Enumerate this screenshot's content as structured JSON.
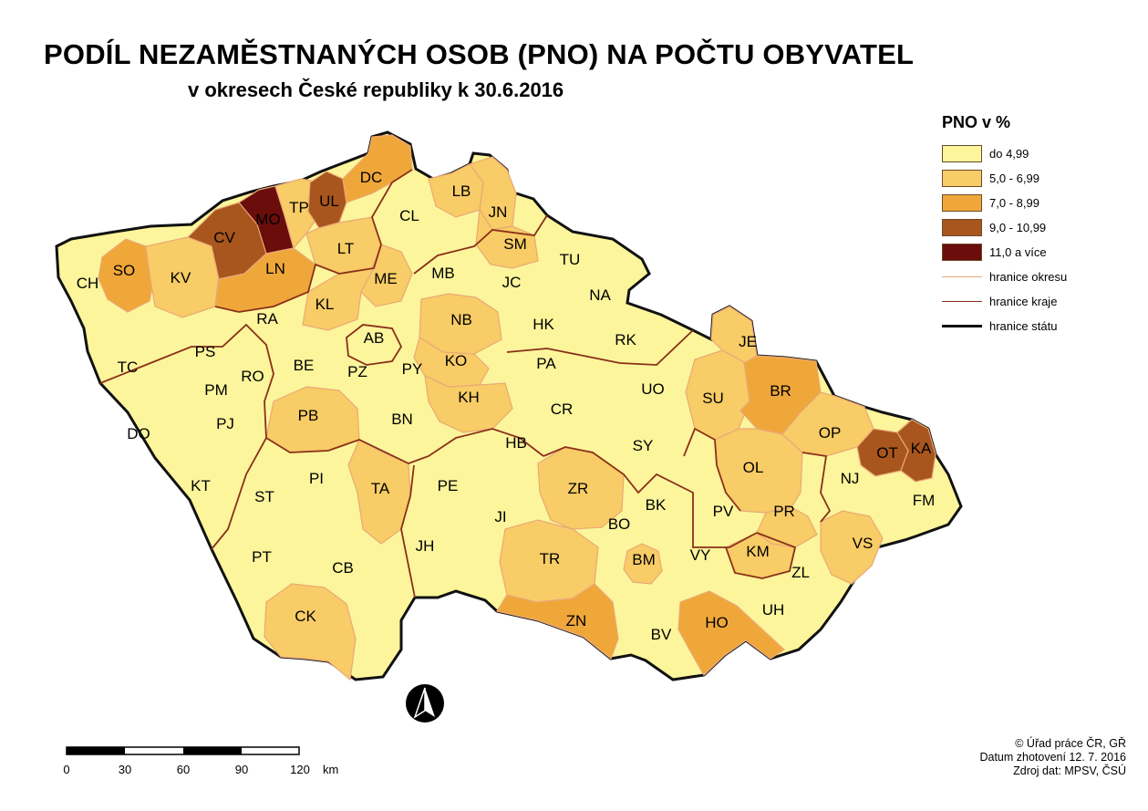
{
  "title": "PODÍL NEZAMĚSTNANÝCH OSOB (PNO) NA POČTU OBYVATEL",
  "subtitle": "v okresech České republiky k 30.6.2016",
  "legend": {
    "title": "PNO v %",
    "classes": [
      {
        "label": "do 4,99",
        "color": "#fcf59b"
      },
      {
        "label": "5,0 - 6,99",
        "color": "#f8cc66"
      },
      {
        "label": "7,0 - 8,99",
        "color": "#f0a73a"
      },
      {
        "label": "9,0 - 10,99",
        "color": "#a8561e"
      },
      {
        "label": "11,0 a více",
        "color": "#6a0d0b"
      }
    ],
    "lines": [
      {
        "label": "hranice okresu",
        "color": "#e9a978"
      },
      {
        "label": "hranice kraje",
        "color": "#8a2f1a"
      },
      {
        "label": "hranice státu",
        "color": "#111111"
      }
    ]
  },
  "districts": [
    {
      "code": "CH",
      "class": 0
    },
    {
      "code": "SO",
      "class": 2
    },
    {
      "code": "KV",
      "class": 1
    },
    {
      "code": "CV",
      "class": 3
    },
    {
      "code": "MO",
      "class": 4
    },
    {
      "code": "TP",
      "class": 1
    },
    {
      "code": "UL",
      "class": 3
    },
    {
      "code": "DC",
      "class": 2
    },
    {
      "code": "LN",
      "class": 2
    },
    {
      "code": "LT",
      "class": 1
    },
    {
      "code": "CL",
      "class": 0
    },
    {
      "code": "LB",
      "class": 1
    },
    {
      "code": "JN",
      "class": 1
    },
    {
      "code": "SM",
      "class": 1
    },
    {
      "code": "TU",
      "class": 0
    },
    {
      "code": "ME",
      "class": 1
    },
    {
      "code": "MB",
      "class": 0
    },
    {
      "code": "KL",
      "class": 1
    },
    {
      "code": "RA",
      "class": 0
    },
    {
      "code": "JC",
      "class": 0
    },
    {
      "code": "NA",
      "class": 0
    },
    {
      "code": "NB",
      "class": 1
    },
    {
      "code": "HK",
      "class": 0
    },
    {
      "code": "RK",
      "class": 0
    },
    {
      "code": "AB",
      "class": 0
    },
    {
      "code": "TC",
      "class": 0
    },
    {
      "code": "PS",
      "class": 0
    },
    {
      "code": "RO",
      "class": 0
    },
    {
      "code": "BE",
      "class": 0
    },
    {
      "code": "PZ",
      "class": 0
    },
    {
      "code": "PY",
      "class": 0
    },
    {
      "code": "KO",
      "class": 1
    },
    {
      "code": "PA",
      "class": 0
    },
    {
      "code": "JE",
      "class": 1
    },
    {
      "code": "PM",
      "class": 0
    },
    {
      "code": "KH",
      "class": 1
    },
    {
      "code": "UO",
      "class": 0
    },
    {
      "code": "SU",
      "class": 1
    },
    {
      "code": "BR",
      "class": 2
    },
    {
      "code": "PJ",
      "class": 0
    },
    {
      "code": "PB",
      "class": 1
    },
    {
      "code": "BN",
      "class": 0
    },
    {
      "code": "CR",
      "class": 0
    },
    {
      "code": "DO",
      "class": 0
    },
    {
      "code": "HB",
      "class": 0
    },
    {
      "code": "SY",
      "class": 0
    },
    {
      "code": "OP",
      "class": 1
    },
    {
      "code": "OT",
      "class": 3
    },
    {
      "code": "KA",
      "class": 3
    },
    {
      "code": "OL",
      "class": 1
    },
    {
      "code": "PI",
      "class": 0
    },
    {
      "code": "KT",
      "class": 0
    },
    {
      "code": "TA",
      "class": 1
    },
    {
      "code": "PE",
      "class": 0
    },
    {
      "code": "ZR",
      "class": 1
    },
    {
      "code": "NJ",
      "class": 0
    },
    {
      "code": "ST",
      "class": 0
    },
    {
      "code": "BK",
      "class": 0
    },
    {
      "code": "FM",
      "class": 0
    },
    {
      "code": "JI",
      "class": 0
    },
    {
      "code": "PV",
      "class": 0
    },
    {
      "code": "PR",
      "class": 1
    },
    {
      "code": "BO",
      "class": 0
    },
    {
      "code": "JH",
      "class": 0
    },
    {
      "code": "VS",
      "class": 1
    },
    {
      "code": "PT",
      "class": 0
    },
    {
      "code": "CB",
      "class": 0
    },
    {
      "code": "TR",
      "class": 1
    },
    {
      "code": "BM",
      "class": 1
    },
    {
      "code": "VY",
      "class": 0
    },
    {
      "code": "KM",
      "class": 1
    },
    {
      "code": "ZL",
      "class": 0
    },
    {
      "code": "CK",
      "class": 1
    },
    {
      "code": "ZN",
      "class": 2
    },
    {
      "code": "UH",
      "class": 0
    },
    {
      "code": "HO",
      "class": 2
    },
    {
      "code": "BV",
      "class": 0
    }
  ],
  "scalebar": {
    "ticks": [
      "0",
      "30",
      "60",
      "90",
      "120"
    ],
    "unit": "km"
  },
  "credits": [
    "© Úřad práce ČR, GŘ",
    "Datum zhotovení 12. 7. 2016",
    "Zdroj dat: MPSV, ČSÚ"
  ]
}
